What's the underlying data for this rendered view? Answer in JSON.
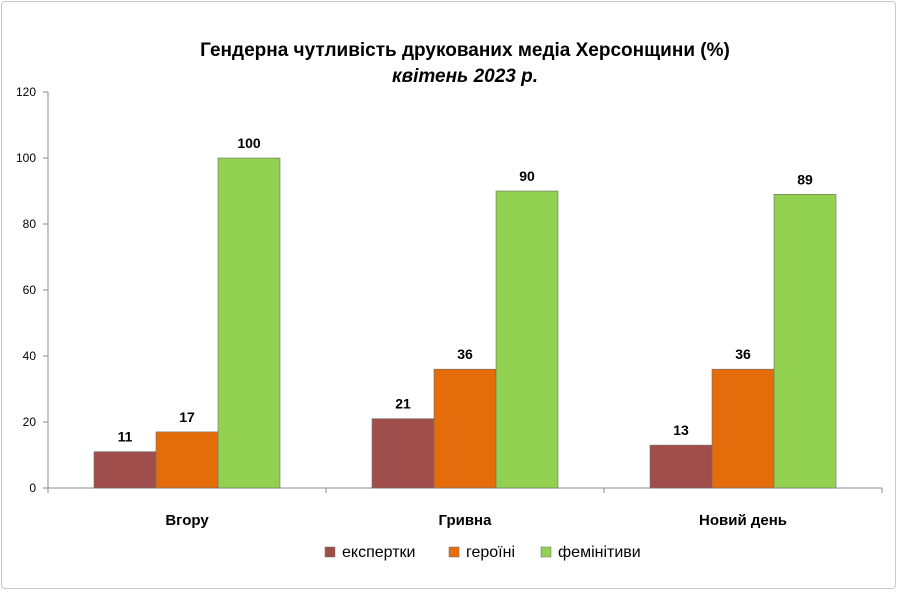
{
  "chart_data": {
    "type": "bar",
    "title": "Гендерна чутливість друкованих медіа Херсонщини (%)",
    "subtitle": "квітень 2023 р.",
    "categories": [
      "Вгору",
      "Гривна",
      "Новий день"
    ],
    "series": [
      {
        "name": "експертки",
        "values": [
          11,
          21,
          13
        ],
        "color": "#A04E4C"
      },
      {
        "name": "героїні",
        "values": [
          17,
          36,
          36
        ],
        "color": "#E46C0A"
      },
      {
        "name": "фемінітиви",
        "values": [
          100,
          90,
          89
        ],
        "color": "#92D050"
      }
    ],
    "ylim": [
      0,
      120
    ],
    "yticks": [
      "0",
      "20",
      "40",
      "60",
      "80",
      "100",
      "120"
    ],
    "grid": false,
    "legend_position": "bottom",
    "data_labels": true
  }
}
